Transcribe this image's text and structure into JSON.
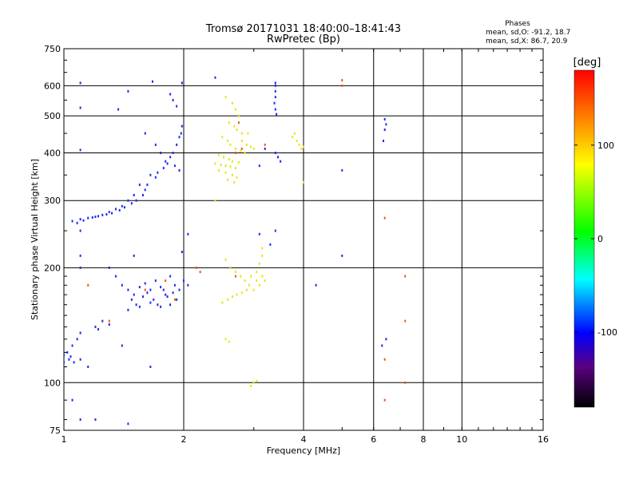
{
  "header": {
    "title": "Tromsø 20171031 18:40:00–18:41:43",
    "subtitle": "RwPretec (Bp)"
  },
  "phase_info": {
    "label": "Phases",
    "line1": "mean, sd,O: -91.2, 18.7",
    "line2": "mean, sd,X:  86.7, 20.9"
  },
  "chart_data": {
    "type": "scatter",
    "xlabel": "Frequency [MHz]",
    "ylabel": "Stationary phase Virtual Height [km]",
    "x_scale": "log2",
    "y_scale": "log",
    "xlim": [
      1,
      16
    ],
    "ylim": [
      75,
      750
    ],
    "x_ticks": [
      {
        "value": 1,
        "label": "1"
      },
      {
        "value": 2,
        "label": "2"
      },
      {
        "value": 4,
        "label": "4"
      },
      {
        "value": 6,
        "label": "6"
      },
      {
        "value": 8,
        "label": "8"
      },
      {
        "value": 10,
        "label": "10"
      },
      {
        "value": 16,
        "label": "16"
      }
    ],
    "y_ticks": [
      {
        "value": 75,
        "label": "75"
      },
      {
        "value": 100,
        "label": "100"
      },
      {
        "value": 200,
        "label": "200"
      },
      {
        "value": 300,
        "label": "300"
      },
      {
        "value": 400,
        "label": "400"
      },
      {
        "value": 500,
        "label": "500"
      },
      {
        "value": 600,
        "label": "600"
      },
      {
        "value": 750,
        "label": "750"
      }
    ],
    "grid": true,
    "colorbar": {
      "label": "[deg]",
      "range": [
        -180,
        180
      ],
      "ticks": [
        {
          "value": 100,
          "label": "100"
        },
        {
          "value": 0,
          "label": "0"
        },
        {
          "value": -100,
          "label": "-100"
        }
      ],
      "colormap": "rainbow"
    },
    "series": [
      {
        "values": [
          [
            1.1,
            610
          ],
          [
            1.1,
            525
          ],
          [
            1.1,
            407
          ],
          [
            1.37,
            520
          ],
          [
            1.45,
            580
          ],
          [
            1.67,
            615
          ],
          [
            1.98,
            610
          ],
          [
            1.85,
            570
          ],
          [
            1.88,
            550
          ],
          [
            1.92,
            530
          ],
          [
            1.6,
            450
          ],
          [
            1.7,
            420
          ],
          [
            1.75,
            400
          ],
          [
            1.8,
            380
          ],
          [
            1.9,
            370
          ],
          [
            1.95,
            360
          ],
          [
            1.65,
            350
          ],
          [
            1.55,
            330
          ],
          [
            1.5,
            310
          ],
          [
            1.45,
            300
          ],
          [
            1.4,
            290
          ],
          [
            1.35,
            285
          ],
          [
            1.3,
            280
          ],
          [
            1.25,
            275
          ],
          [
            1.2,
            272
          ],
          [
            1.15,
            270
          ],
          [
            1.1,
            268
          ],
          [
            1.05,
            265
          ],
          [
            1.6,
            320
          ],
          [
            1.7,
            345
          ],
          [
            1.78,
            365
          ],
          [
            1.85,
            390
          ],
          [
            1.92,
            420
          ],
          [
            1.97,
            450
          ],
          [
            1.62,
            330
          ],
          [
            1.72,
            355
          ],
          [
            1.82,
            375
          ],
          [
            1.88,
            400
          ],
          [
            1.95,
            440
          ],
          [
            1.98,
            470
          ],
          [
            1.58,
            310
          ],
          [
            1.52,
            300
          ],
          [
            1.48,
            295
          ],
          [
            1.42,
            288
          ],
          [
            1.38,
            283
          ],
          [
            1.32,
            278
          ],
          [
            1.28,
            276
          ],
          [
            1.22,
            273
          ],
          [
            1.18,
            271
          ],
          [
            1.12,
            266
          ],
          [
            1.08,
            262
          ],
          [
            1.1,
            250
          ],
          [
            1.1,
            215
          ],
          [
            1.1,
            200
          ],
          [
            1.5,
            215
          ],
          [
            2.05,
            245
          ],
          [
            1.98,
            220
          ],
          [
            2.4,
            630
          ],
          [
            3.4,
            600
          ],
          [
            3.4,
            580
          ],
          [
            3.4,
            560
          ],
          [
            3.4,
            520
          ],
          [
            3.42,
            505
          ],
          [
            3.38,
            540
          ],
          [
            3.4,
            610
          ],
          [
            3.4,
            400
          ],
          [
            3.45,
            390
          ],
          [
            3.5,
            380
          ],
          [
            3.1,
            370
          ],
          [
            3.2,
            410
          ],
          [
            6.4,
            490
          ],
          [
            6.45,
            475
          ],
          [
            6.4,
            460
          ],
          [
            6.35,
            430
          ],
          [
            5.0,
            360
          ],
          [
            3.4,
            250
          ],
          [
            3.1,
            245
          ],
          [
            3.3,
            230
          ],
          [
            5.0,
            215
          ],
          [
            4.3,
            180
          ],
          [
            1.3,
            200
          ],
          [
            1.35,
            190
          ],
          [
            1.4,
            180
          ],
          [
            1.45,
            175
          ],
          [
            1.5,
            170
          ],
          [
            1.55,
            178
          ],
          [
            1.6,
            182
          ],
          [
            1.65,
            175
          ],
          [
            1.7,
            185
          ],
          [
            1.75,
            178
          ],
          [
            1.8,
            170
          ],
          [
            1.85,
            190
          ],
          [
            1.9,
            180
          ],
          [
            1.95,
            175
          ],
          [
            2.0,
            185
          ],
          [
            2.05,
            180
          ],
          [
            1.48,
            165
          ],
          [
            1.52,
            160
          ],
          [
            1.58,
            168
          ],
          [
            1.62,
            172
          ],
          [
            1.68,
            165
          ],
          [
            1.72,
            160
          ],
          [
            1.78,
            175
          ],
          [
            1.82,
            168
          ],
          [
            1.88,
            172
          ],
          [
            1.92,
            165
          ],
          [
            1.45,
            155
          ],
          [
            1.55,
            158
          ],
          [
            1.65,
            162
          ],
          [
            1.75,
            158
          ],
          [
            1.85,
            160
          ],
          [
            1.25,
            145
          ],
          [
            1.2,
            140
          ],
          [
            1.22,
            138
          ],
          [
            1.3,
            142
          ],
          [
            1.1,
            135
          ],
          [
            1.08,
            130
          ],
          [
            1.05,
            125
          ],
          [
            1.02,
            120
          ],
          [
            1.0,
            118
          ],
          [
            1.03,
            115
          ],
          [
            1.06,
            113
          ],
          [
            1.1,
            115
          ],
          [
            1.0,
            113
          ],
          [
            1.04,
            117
          ],
          [
            1.15,
            110
          ],
          [
            1.4,
            125
          ],
          [
            1.65,
            110
          ],
          [
            1.05,
            90
          ],
          [
            1.2,
            80
          ],
          [
            1.1,
            80
          ],
          [
            1.45,
            78
          ],
          [
            6.3,
            125
          ],
          [
            6.45,
            130
          ]
        ]
      },
      {
        "values": [
          [
            2.55,
            560
          ],
          [
            2.65,
            540
          ],
          [
            2.7,
            520
          ],
          [
            2.75,
            500
          ],
          [
            2.6,
            480
          ],
          [
            2.68,
            470
          ],
          [
            2.72,
            460
          ],
          [
            2.8,
            450
          ],
          [
            2.5,
            440
          ],
          [
            2.58,
            430
          ],
          [
            2.62,
            420
          ],
          [
            2.7,
            410
          ],
          [
            2.78,
            405
          ],
          [
            2.85,
            400
          ],
          [
            2.45,
            395
          ],
          [
            2.52,
            390
          ],
          [
            2.6,
            385
          ],
          [
            2.65,
            380
          ],
          [
            2.75,
            378
          ],
          [
            2.4,
            375
          ],
          [
            2.48,
            372
          ],
          [
            2.55,
            370
          ],
          [
            2.62,
            368
          ],
          [
            2.7,
            365
          ],
          [
            2.45,
            360
          ],
          [
            2.55,
            355
          ],
          [
            2.65,
            350
          ],
          [
            2.72,
            345
          ],
          [
            2.58,
            340
          ],
          [
            2.68,
            335
          ],
          [
            2.8,
            430
          ],
          [
            2.88,
            420
          ],
          [
            2.95,
            415
          ],
          [
            3.0,
            410
          ],
          [
            2.9,
            450
          ],
          [
            3.75,
            440
          ],
          [
            3.85,
            430
          ],
          [
            3.9,
            420
          ],
          [
            4.0,
            415
          ],
          [
            3.95,
            410
          ],
          [
            3.8,
            450
          ],
          [
            4.0,
            335
          ],
          [
            2.55,
            210
          ],
          [
            2.62,
            200
          ],
          [
            2.7,
            195
          ],
          [
            2.78,
            190
          ],
          [
            2.85,
            185
          ],
          [
            2.92,
            180
          ],
          [
            3.0,
            175
          ],
          [
            3.05,
            195
          ],
          [
            3.1,
            205
          ],
          [
            3.15,
            215
          ],
          [
            3.05,
            185
          ],
          [
            2.95,
            190
          ],
          [
            2.88,
            175
          ],
          [
            2.8,
            172
          ],
          [
            2.72,
            170
          ],
          [
            2.65,
            168
          ],
          [
            2.58,
            165
          ],
          [
            2.5,
            162
          ],
          [
            3.15,
            190
          ],
          [
            3.2,
            185
          ],
          [
            3.1,
            180
          ],
          [
            2.55,
            130
          ],
          [
            2.6,
            128
          ],
          [
            3.0,
            100
          ],
          [
            2.95,
            98
          ],
          [
            3.05,
            101
          ],
          [
            3.15,
            225
          ],
          [
            2.4,
            300
          ]
        ]
      },
      {
        "values": [
          [
            2.75,
            480
          ],
          [
            2.8,
            410
          ],
          [
            3.2,
            420
          ],
          [
            2.7,
            400
          ],
          [
            5.0,
            620
          ],
          [
            5.0,
            600
          ],
          [
            6.4,
            270
          ],
          [
            7.2,
            190
          ],
          [
            7.2,
            145
          ],
          [
            6.4,
            115
          ],
          [
            7.2,
            100
          ],
          [
            6.4,
            90
          ],
          [
            1.8,
            185
          ],
          [
            1.6,
            175
          ],
          [
            1.9,
            165
          ],
          [
            2.15,
            200
          ],
          [
            2.2,
            195
          ],
          [
            1.3,
            145
          ],
          [
            1.15,
            180
          ],
          [
            2.7,
            190
          ]
        ]
      }
    ]
  },
  "colors": {
    "series_1": "#1a2cf0",
    "series_2": "#e6e617",
    "series_3": "#e8591a",
    "axis": "#000000",
    "background": "#ffffff"
  }
}
